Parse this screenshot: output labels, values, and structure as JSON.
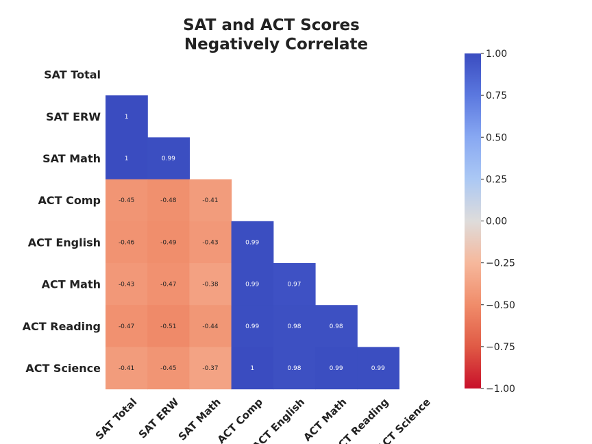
{
  "chart_data": {
    "type": "heatmap",
    "title": [
      "SAT and ACT Scores",
      "Negatively Correlate"
    ],
    "row_labels": [
      "SAT Total",
      "SAT ERW",
      "SAT Math",
      "ACT Comp",
      "ACT English",
      "ACT Math",
      "ACT Reading",
      "ACT Science"
    ],
    "col_labels": [
      "SAT Total",
      "SAT ERW",
      "SAT Math",
      "ACT Comp",
      "ACT English",
      "ACT Math",
      "ACT Reading",
      "ACT Science"
    ],
    "mask": "upper-triangle-including-diagonal",
    "values": [
      [
        null,
        null,
        null,
        null,
        null,
        null,
        null,
        null
      ],
      [
        1,
        null,
        null,
        null,
        null,
        null,
        null,
        null
      ],
      [
        1,
        0.99,
        null,
        null,
        null,
        null,
        null,
        null
      ],
      [
        -0.45,
        -0.48,
        -0.41,
        null,
        null,
        null,
        null,
        null
      ],
      [
        -0.46,
        -0.49,
        -0.43,
        0.99,
        null,
        null,
        null,
        null
      ],
      [
        -0.43,
        -0.47,
        -0.38,
        0.99,
        0.97,
        null,
        null,
        null
      ],
      [
        -0.47,
        -0.51,
        -0.44,
        0.99,
        0.98,
        0.98,
        null,
        null
      ],
      [
        -0.41,
        -0.45,
        -0.37,
        1,
        0.98,
        0.99,
        0.99,
        null
      ]
    ],
    "value_labels": [
      [
        null,
        null,
        null,
        null,
        null,
        null,
        null,
        null
      ],
      [
        "1",
        null,
        null,
        null,
        null,
        null,
        null,
        null
      ],
      [
        "1",
        "0.99",
        null,
        null,
        null,
        null,
        null,
        null
      ],
      [
        "-0.45",
        "-0.48",
        "-0.41",
        null,
        null,
        null,
        null,
        null
      ],
      [
        "-0.46",
        "-0.49",
        "-0.43",
        "0.99",
        null,
        null,
        null,
        null
      ],
      [
        "-0.43",
        "-0.47",
        "-0.38",
        "0.99",
        "0.97",
        null,
        null,
        null
      ],
      [
        "-0.47",
        "-0.51",
        "-0.44",
        "0.99",
        "0.98",
        "0.98",
        null,
        null
      ],
      [
        "-0.41",
        "-0.45",
        "-0.37",
        "1",
        "0.98",
        "0.99",
        "0.99",
        null
      ]
    ],
    "colormap": "coolwarm_r",
    "vmin": -1,
    "vmax": 1,
    "colorbar": {
      "ticks": [
        1.0,
        0.75,
        0.5,
        0.25,
        0.0,
        -0.25,
        -0.5,
        -0.75,
        -1.0
      ],
      "tick_labels": [
        "1.00",
        "0.75",
        "0.50",
        "0.25",
        "0.00",
        "−0.25",
        "−0.50",
        "−0.75",
        "−1.00"
      ],
      "placement": "right"
    },
    "grid": false
  }
}
